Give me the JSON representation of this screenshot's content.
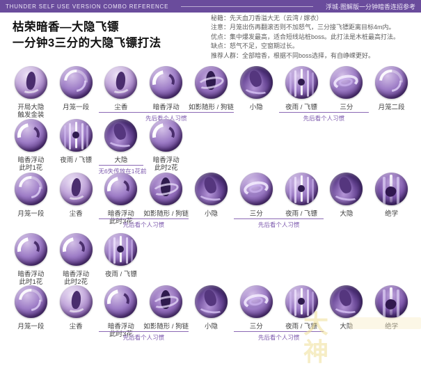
{
  "header": {
    "left": "THUNDER SELF USE VERSION COMBO REFERENCE",
    "right": "浮城·图解版一分钟暗香连招参考"
  },
  "title": {
    "line1": "枯荣暗香—大隐飞镖",
    "line2": "一分钟3三分的大隐飞镖打法"
  },
  "notes": [
    "秘籍：先天血刀香溢大无（云湾 / 嫁衣）",
    "注意：月笼出伤再翻滚否则不加怒气，三分接飞镖距离目标4m内。",
    "优点：集中爆发最高，适合短线站桩boss。此打法是木桩最高打法。",
    "缺点：怒气不足，空窗期过长。",
    "推荐人群：全部暗香，根据不同boss选择，有自峥嵘更好。"
  ],
  "colors": {
    "header_bg": "#6a4c9c",
    "underline": "#8a68b4",
    "caption": "#7c58ad",
    "label": "#3f3f3f"
  },
  "rows": [
    {
      "cells": [
        {
          "label": "开局大隐\n触发金装",
          "icon": "opening-grand-hide-icon",
          "v": "dust"
        },
        {
          "label": "月笼一段",
          "icon": "moon-cage-1-icon",
          "v": "moon"
        },
        {
          "label": "尘香",
          "icon": "dust-fragrance-icon",
          "v": "dust"
        },
        {
          "label": "暗香浮动",
          "icon": "dark-fragrance-float-icon",
          "v": "petal"
        },
        {
          "label": "如影随形 / 狗链",
          "icon": "shadow-follow-icon",
          "v": "shadow"
        },
        {
          "label": "小隐",
          "icon": "small-hide-icon",
          "v": "hide"
        },
        {
          "label": "夜雨 / 飞镖",
          "icon": "night-rain-dart-icon",
          "v": "rain"
        },
        {
          "label": "三分",
          "icon": "three-parts-icon",
          "v": "three"
        },
        {
          "label": "月笼二段",
          "icon": "moon-cage-2-icon",
          "v": "moon"
        }
      ],
      "groups": [
        {
          "start": 2,
          "span": 3,
          "caption": "先后看个人习惯"
        },
        {
          "start": 6,
          "span": 2,
          "caption": "先后看个人习惯"
        }
      ]
    },
    {
      "cells": [
        {
          "label": "暗香浮动\n此时1花",
          "icon": "dark-fragrance-float-icon",
          "v": "petal"
        },
        {
          "label": "夜雨 / 飞镖",
          "icon": "night-rain-dart-icon",
          "v": "rain"
        },
        {
          "label": "大隐",
          "icon": "grand-hide-icon",
          "v": "hide"
        },
        {
          "label": "暗香浮动\n此时2花",
          "icon": "dark-fragrance-float-icon",
          "v": "petal"
        }
      ],
      "groups": [
        {
          "start": 2,
          "span": 1,
          "caption": "无6失传放在1花前"
        }
      ]
    },
    {
      "cells": [
        {
          "label": "月笼一段",
          "icon": "moon-cage-1-icon",
          "v": "moon"
        },
        {
          "label": "尘香",
          "icon": "dust-fragrance-icon",
          "v": "dust"
        },
        {
          "label": "暗香浮动\n此时3花",
          "icon": "dark-fragrance-float-icon",
          "v": "petal"
        },
        {
          "label": "如影随形 / 狗链",
          "icon": "shadow-follow-icon",
          "v": "shadow"
        },
        {
          "label": "小隐",
          "icon": "small-hide-icon",
          "v": "hide"
        },
        {
          "label": "三分",
          "icon": "three-parts-icon",
          "v": "three"
        },
        {
          "label": "夜雨 / 飞镖",
          "icon": "night-rain-dart-icon",
          "v": "rain"
        },
        {
          "label": "大隐",
          "icon": "grand-hide-icon",
          "v": "hide"
        },
        {
          "label": "绝学",
          "icon": "ultimate-icon",
          "v": "ult"
        }
      ],
      "groups": [
        {
          "start": 2,
          "span": 2,
          "caption": "先后看个人习惯"
        },
        {
          "start": 5,
          "span": 2,
          "caption": "先后看个人习惯"
        }
      ]
    },
    {
      "cells": [
        {
          "label": "暗香浮动\n此时1花",
          "icon": "dark-fragrance-float-icon",
          "v": "petal"
        },
        {
          "label": "暗香浮动\n此时2花",
          "icon": "dark-fragrance-float-icon",
          "v": "petal"
        },
        {
          "label": "夜雨 / 飞镖",
          "icon": "night-rain-dart-icon",
          "v": "rain"
        }
      ],
      "groups": []
    },
    {
      "cells": [
        {
          "label": "月笼一段",
          "icon": "moon-cage-1-icon",
          "v": "moon"
        },
        {
          "label": "尘香",
          "icon": "dust-fragrance-icon",
          "v": "dust"
        },
        {
          "label": "暗香浮动\n此时3花",
          "icon": "dark-fragrance-float-icon",
          "v": "petal"
        },
        {
          "label": "如影随形 / 狗链",
          "icon": "shadow-follow-icon",
          "v": "shadow"
        },
        {
          "label": "小隐",
          "icon": "small-hide-icon",
          "v": "hide"
        },
        {
          "label": "三分",
          "icon": "three-parts-icon",
          "v": "three"
        },
        {
          "label": "夜雨 / 飞镖",
          "icon": "night-rain-dart-icon",
          "v": "rain"
        },
        {
          "label": "大隐",
          "icon": "grand-hide-icon",
          "v": "hide"
        },
        {
          "label": "绝学",
          "icon": "ultimate-icon",
          "v": "ult"
        }
      ],
      "groups": [
        {
          "start": 2,
          "span": 2,
          "caption": "先后看个人习惯"
        },
        {
          "start": 5,
          "span": 2,
          "caption": "先后看个人习惯"
        }
      ]
    }
  ],
  "watermark": {
    "text": "大神"
  }
}
